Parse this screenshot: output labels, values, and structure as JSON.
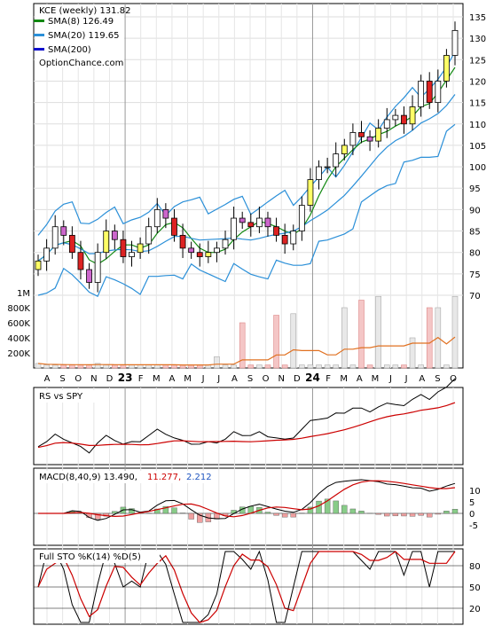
{
  "chart_data": {
    "type": "stock",
    "ticker_label": "KCE (weekly) 131.82",
    "legend": [
      {
        "label": "SMA(8) 126.49",
        "color": "#118811"
      },
      {
        "label": "SMA(20) 119.65",
        "color": "#2a8fd8"
      },
      {
        "label": "SMA(200)",
        "color": "#1010cc"
      }
    ],
    "watermark": "OptionChance.com",
    "x_ticks": [
      "A",
      "S",
      "O",
      "N",
      "D",
      "23",
      "F",
      "M",
      "A",
      "M",
      "J",
      "J",
      "A",
      "S",
      "O",
      "N",
      "D",
      "24",
      "F",
      "M",
      "A",
      "M",
      "J",
      "J",
      "A",
      "S",
      "O"
    ],
    "price_axis": {
      "ticks": [
        "135",
        "130",
        "125",
        "120",
        "115",
        "110",
        "105",
        "100",
        "95",
        "90",
        "85",
        "80",
        "75",
        "70"
      ],
      "ylim": [
        67,
        137
      ]
    },
    "volume_axis": {
      "ticks": [
        "1M",
        "800K",
        "600K",
        "400K",
        "200K"
      ],
      "ylim": [
        0,
        1000000
      ]
    },
    "close": [
      78,
      81,
      86,
      84,
      80,
      76,
      73,
      80,
      85,
      83,
      79,
      80,
      82,
      86,
      90,
      88,
      84,
      81,
      80,
      79,
      80,
      81,
      83,
      88,
      87,
      86,
      88,
      86,
      84,
      82,
      85,
      91,
      97,
      100,
      100,
      103,
      105,
      108,
      107,
      106,
      109,
      111,
      112,
      110,
      114,
      120,
      115,
      120,
      126,
      131.82
    ],
    "volume": [
      60000,
      40000,
      40000,
      40000,
      40000,
      40000,
      40000,
      60000,
      40000,
      40000,
      40000,
      40000,
      40000,
      40000,
      40000,
      40000,
      40000,
      40000,
      40000,
      40000,
      40000,
      40000,
      40000,
      40000,
      40000,
      40000,
      40000,
      40000,
      40000,
      40000,
      40000,
      40000,
      40000,
      40000,
      40000,
      40000,
      40000,
      40000,
      40000,
      40000,
      40000,
      40000,
      40000,
      40000,
      40000,
      40000,
      40000,
      40000,
      40000,
      60000
    ],
    "volume_spikes": [
      {
        "index": 21,
        "value": 150000
      },
      {
        "index": 24,
        "value": 600000
      },
      {
        "index": 28,
        "value": 700000
      },
      {
        "index": 30,
        "value": 720000
      },
      {
        "index": 36,
        "value": 800000
      },
      {
        "index": 38,
        "value": 900000
      },
      {
        "index": 40,
        "value": 950000
      },
      {
        "index": 44,
        "value": 400000
      },
      {
        "index": 46,
        "value": 800000
      },
      {
        "index": 47,
        "value": 800000
      },
      {
        "index": 49,
        "value": 950000
      }
    ],
    "rs": {
      "label": "RS vs SPY"
    },
    "macd": {
      "label": "MACD(8,40,9) 13.490,",
      "v1": "11.277,",
      "v2": "2.212",
      "v1_color": "#cc0000",
      "v2_color": "#1f55c0",
      "ticks": [
        "10",
        "5",
        "0",
        "-5"
      ],
      "ylim": [
        -10,
        15
      ]
    },
    "sto": {
      "label": "Full STO %K(14) %D(5)",
      "ticks": [
        "80",
        "50",
        "20"
      ],
      "ylim": [
        0,
        100
      ]
    }
  }
}
